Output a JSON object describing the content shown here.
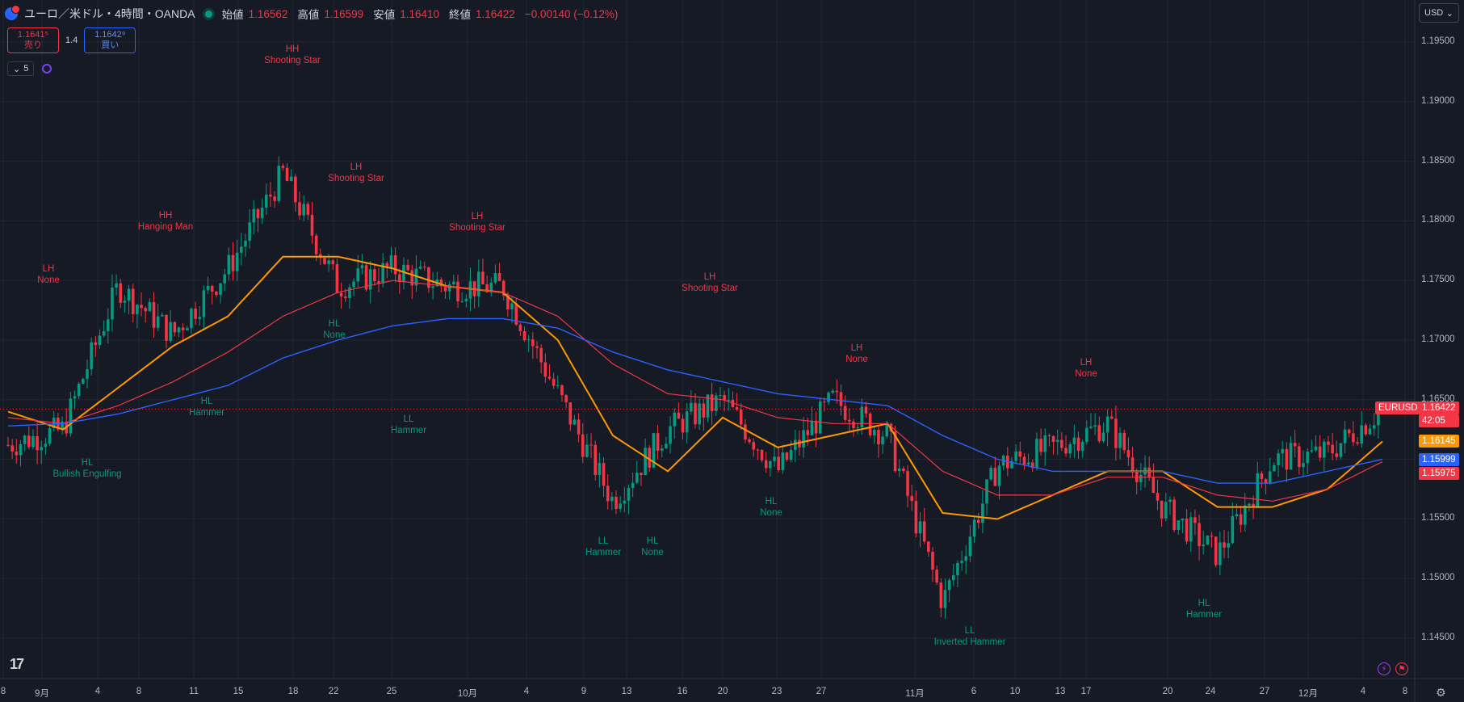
{
  "header": {
    "symbol_title": "ユーロ／米ドル・4時間・OANDA",
    "open_label": "始値",
    "open_value": "1.16562",
    "high_label": "高値",
    "high_value": "1.16599",
    "low_label": "安値",
    "low_value": "1.16410",
    "close_label": "終値",
    "close_value": "1.16422",
    "change": "−0.00140 (−0.12%)"
  },
  "trade": {
    "sell_price": "1.1641⁵",
    "sell_label": "売り",
    "spread": "1.4",
    "buy_price": "1.1642⁹",
    "buy_label": "買い"
  },
  "indicators": {
    "count": "5"
  },
  "currency": "USD",
  "price_axis": {
    "labels": [
      "1.19500",
      "1.19000",
      "1.18500",
      "1.18000",
      "1.17500",
      "1.17000",
      "1.16500",
      "1.16000",
      "1.15500",
      "1.15000",
      "1.14500"
    ],
    "tags": {
      "last_symbol": "EURUSD",
      "last_price": "1.16422",
      "countdown": "42:05",
      "ma_orange": "1.16145",
      "ma_blue": "1.15999",
      "ma_red": "1.15975"
    }
  },
  "time_axis": [
    "8",
    "9月",
    "4",
    "8",
    "11",
    "15",
    "18",
    "22",
    "25",
    "10月",
    "4",
    "9",
    "13",
    "16",
    "20",
    "23",
    "27",
    "11月",
    "6",
    "10",
    "13",
    "17",
    "20",
    "24",
    "27",
    "12月",
    "4",
    "8"
  ],
  "patterns": [
    {
      "l1": "LH",
      "l2": "None",
      "color": "red"
    },
    {
      "l1": "HL",
      "l2": "Bullish Engulfing",
      "color": "green"
    },
    {
      "l1": "HH",
      "l2": "Hanging Man",
      "color": "red"
    },
    {
      "l1": "HL",
      "l2": "Hammer",
      "color": "green"
    },
    {
      "l1": "HH",
      "l2": "Shooting Star",
      "color": "red"
    },
    {
      "l1": "HL",
      "l2": "None",
      "color": "green"
    },
    {
      "l1": "LH",
      "l2": "Shooting Star",
      "color": "red"
    },
    {
      "l1": "LL",
      "l2": "Hammer",
      "color": "green"
    },
    {
      "l1": "LH",
      "l2": "Shooting Star",
      "color": "red"
    },
    {
      "l1": "LL",
      "l2": "Hammer",
      "color": "green"
    },
    {
      "l1": "HL",
      "l2": "None",
      "color": "green"
    },
    {
      "l1": "LH",
      "l2": "Shooting Star",
      "color": "red"
    },
    {
      "l1": "HL",
      "l2": "None",
      "color": "green"
    },
    {
      "l1": "LH",
      "l2": "None",
      "color": "red"
    },
    {
      "l1": "LL",
      "l2": "Inverted Hammer",
      "color": "green"
    },
    {
      "l1": "LH",
      "l2": "None",
      "color": "red"
    },
    {
      "l1": "HL",
      "l2": "Hammer",
      "color": "green"
    }
  ],
  "colors": {
    "up": "#089981",
    "down": "#f23645",
    "ma_orange": "#ff9800",
    "ma_red": "#f23645",
    "ma_blue": "#2962ff",
    "background": "#161a25",
    "grid": "#232632"
  },
  "chart_data": {
    "type": "line",
    "title": "ユーロ／米ドル・4時間・OANDA",
    "xlabel": "",
    "ylabel": "",
    "ylim": [
      1.1435,
      1.1985
    ],
    "x": [
      "9月",
      "4",
      "8",
      "11",
      "15",
      "18",
      "22",
      "25",
      "10月",
      "4",
      "9",
      "13",
      "16",
      "20",
      "23",
      "27",
      "11月",
      "6",
      "10",
      "13",
      "17",
      "20",
      "24",
      "27",
      "12月",
      "4"
    ],
    "series": [
      {
        "name": "Close",
        "values": [
          1.1612,
          1.1625,
          1.1745,
          1.1705,
          1.176,
          1.184,
          1.1745,
          1.176,
          1.1745,
          1.1745,
          1.1655,
          1.1565,
          1.1625,
          1.165,
          1.159,
          1.165,
          1.162,
          1.148,
          1.1595,
          1.161,
          1.163,
          1.156,
          1.152,
          1.16,
          1.1605,
          1.1642
        ]
      },
      {
        "name": "",
        "values": [
          1.164,
          1.1625,
          1.166,
          1.1695,
          1.172,
          1.177,
          1.177,
          1.176,
          1.1745,
          1.174,
          1.17,
          1.162,
          1.159,
          1.1635,
          1.161,
          1.162,
          1.163,
          1.1555,
          1.155,
          1.157,
          1.159,
          1.159,
          1.156,
          1.156,
          1.1575,
          1.1615
        ]
      },
      {
        "name": "",
        "values": [
          1.1635,
          1.163,
          1.1645,
          1.1665,
          1.169,
          1.172,
          1.174,
          1.175,
          1.1745,
          1.174,
          1.172,
          1.168,
          1.1655,
          1.165,
          1.1635,
          1.163,
          1.163,
          1.159,
          1.157,
          1.157,
          1.1585,
          1.1585,
          1.157,
          1.1565,
          1.1575,
          1.1598
        ]
      },
      {
        "name": "",
        "values": [
          1.1628,
          1.163,
          1.1638,
          1.165,
          1.1662,
          1.1685,
          1.17,
          1.1712,
          1.1718,
          1.1718,
          1.171,
          1.169,
          1.1675,
          1.1665,
          1.1655,
          1.165,
          1.1645,
          1.162,
          1.16,
          1.159,
          1.159,
          1.159,
          1.158,
          1.158,
          1.159,
          1.16
        ]
      }
    ]
  }
}
